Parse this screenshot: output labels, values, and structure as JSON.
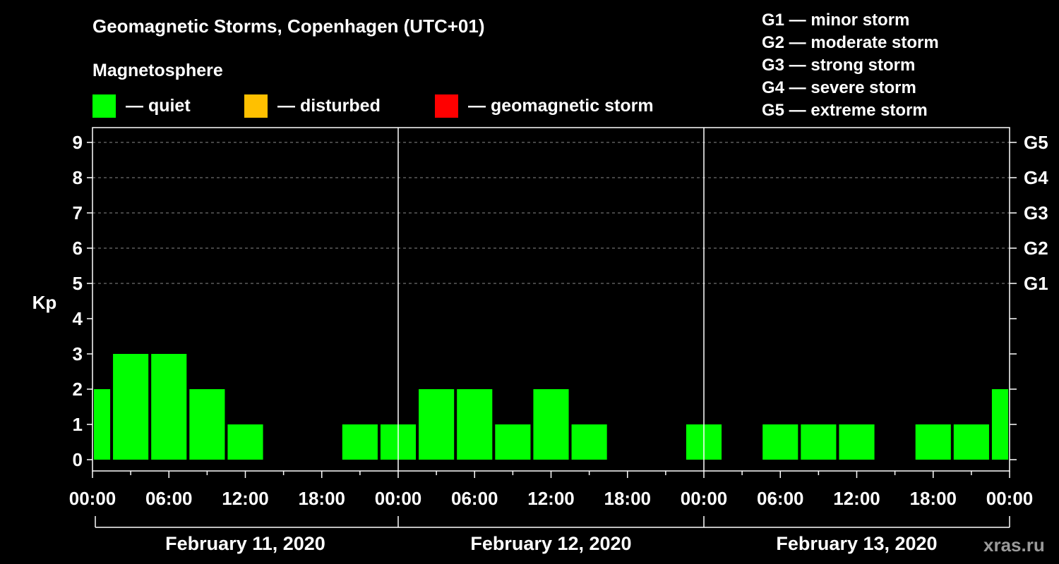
{
  "header": {
    "title": "Geomagnetic Storms, Copenhagen (UTC+01)",
    "subtitle": "Magnetosphere"
  },
  "legend": {
    "items": [
      {
        "label": "— quiet",
        "color": "#00ff00"
      },
      {
        "label": "— disturbed",
        "color": "#ffc000"
      },
      {
        "label": "— geomagnetic storm",
        "color": "#ff0000"
      }
    ]
  },
  "g_scale": [
    "G1 — minor storm",
    "G2 — moderate storm",
    "G3 — strong storm",
    "G4 — severe storm",
    "G5 — extreme storm"
  ],
  "watermark": "xras.ru",
  "chart_data": {
    "type": "bar",
    "ylabel": "Kp",
    "ylim": [
      0,
      9
    ],
    "yticks": [
      "0",
      "1",
      "2",
      "3",
      "4",
      "5",
      "6",
      "7",
      "8",
      "9"
    ],
    "right_ticks": [
      {
        "kp": 5,
        "label": "G1"
      },
      {
        "kp": 6,
        "label": "G2"
      },
      {
        "kp": 7,
        "label": "G3"
      },
      {
        "kp": 8,
        "label": "G4"
      },
      {
        "kp": 9,
        "label": "G5"
      }
    ],
    "xticks": [
      "00:00",
      "06:00",
      "12:00",
      "18:00",
      "00:00",
      "06:00",
      "12:00",
      "18:00",
      "00:00",
      "06:00",
      "12:00",
      "18:00",
      "00:00"
    ],
    "days": [
      "February 11, 2020",
      "February 12, 2020",
      "February 13, 2020"
    ],
    "interval_hours": 3,
    "kp_values": [
      2,
      3,
      3,
      2,
      1,
      0,
      0,
      1,
      1,
      2,
      2,
      1,
      2,
      1,
      0,
      0,
      1,
      0,
      1,
      1,
      1,
      0,
      1,
      1,
      2
    ],
    "grid_dashed_at": [
      5,
      6,
      7,
      8,
      9
    ],
    "bar_color": "#00ff00"
  }
}
